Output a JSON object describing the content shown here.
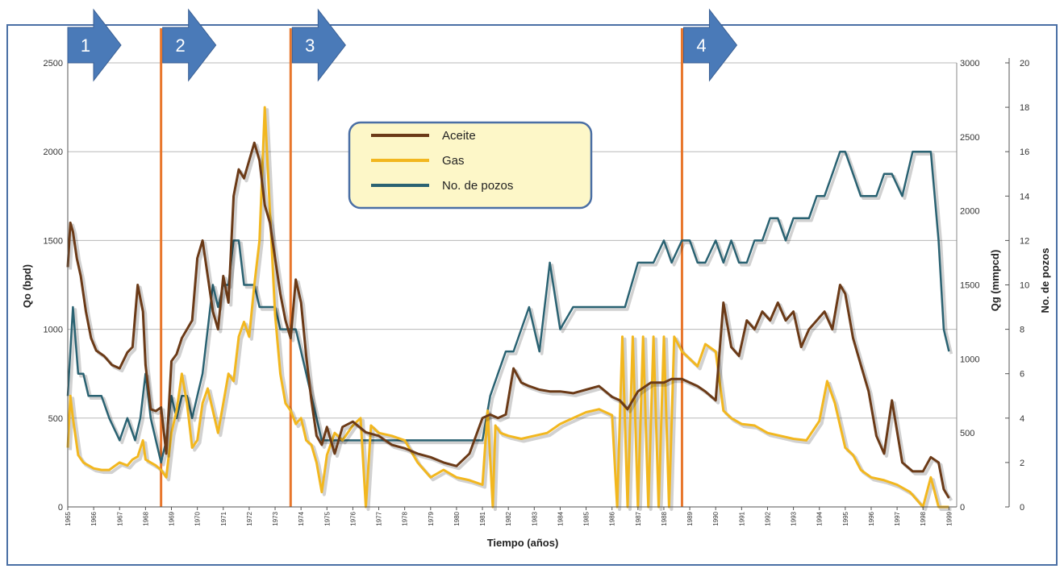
{
  "chart_data": {
    "type": "line",
    "title": "",
    "xlabel": "Tiempo (años)",
    "ylabel_left": "Qo (bpd)",
    "ylabel_right1": "Qg (mmpcd)",
    "ylabel_right2": "No. de pozos",
    "ylim_left": [
      0,
      2500
    ],
    "ylim_right1": [
      0,
      3000
    ],
    "ylim_right2": [
      0,
      20
    ],
    "yticks_left": [
      "0",
      "500",
      "1000",
      "1500",
      "2000",
      "2500"
    ],
    "yticks_right1": [
      "0",
      "500",
      "1000",
      "1500",
      "2000",
      "2500",
      "3000"
    ],
    "yticks_right2": [
      "0",
      "2",
      "4",
      "6",
      "8",
      "10",
      "12",
      "14",
      "16",
      "18",
      "20"
    ],
    "x_tick_labels": [
      "1965",
      "1966",
      "1967",
      "1968",
      "1969",
      "1970",
      "1971",
      "1972",
      "1973",
      "1974",
      "1975",
      "1976",
      "1977",
      "1978",
      "1979",
      "1980",
      "1981",
      "1982",
      "1983",
      "1984",
      "1985",
      "1986",
      "1987",
      "1988",
      "1989",
      "1990",
      "1991",
      "1992",
      "1993",
      "1994",
      "1995",
      "1996",
      "1997",
      "1998",
      "1999"
    ],
    "grid": "horizontal",
    "legend_placement": "top-center",
    "phases": [
      {
        "label": "1",
        "start": 1965.0
      },
      {
        "label": "2",
        "start": 1968.6
      },
      {
        "label": "3",
        "start": 1973.6
      },
      {
        "label": "4",
        "start": 1988.7
      }
    ],
    "series": [
      {
        "name": "Aceite",
        "axis": "left",
        "color": "#6b3a17",
        "x": [
          1965.0,
          1965.1,
          1965.2,
          1965.35,
          1965.5,
          1965.7,
          1965.9,
          1966.1,
          1966.4,
          1966.7,
          1967.0,
          1967.3,
          1967.5,
          1967.7,
          1967.9,
          1968.0,
          1968.2,
          1968.4,
          1968.6,
          1968.8,
          1969.0,
          1969.2,
          1969.4,
          1969.6,
          1969.8,
          1970.0,
          1970.2,
          1970.4,
          1970.6,
          1970.8,
          1971.0,
          1971.2,
          1971.4,
          1971.6,
          1971.8,
          1972.0,
          1972.2,
          1972.4,
          1972.6,
          1972.8,
          1973.0,
          1973.2,
          1973.4,
          1973.6,
          1973.8,
          1974.0,
          1974.2,
          1974.4,
          1974.6,
          1974.8,
          1975.0,
          1975.3,
          1975.6,
          1976.0,
          1976.5,
          1977.0,
          1977.5,
          1978.0,
          1978.5,
          1979.0,
          1979.5,
          1980.0,
          1980.5,
          1981.0,
          1981.3,
          1981.6,
          1981.9,
          1982.2,
          1982.5,
          1982.8,
          1983.2,
          1983.6,
          1984.0,
          1984.5,
          1985.0,
          1985.5,
          1986.0,
          1986.3,
          1986.6,
          1987.0,
          1987.5,
          1988.0,
          1988.3,
          1988.7,
          1989.0,
          1989.3,
          1989.6,
          1990.0,
          1990.3,
          1990.6,
          1990.9,
          1991.2,
          1991.5,
          1991.8,
          1992.1,
          1992.4,
          1992.7,
          1993.0,
          1993.3,
          1993.6,
          1993.9,
          1994.2,
          1994.5,
          1994.8,
          1995.0,
          1995.3,
          1995.6,
          1995.9,
          1996.2,
          1996.5,
          1996.8,
          1997.2,
          1997.6,
          1998.0,
          1998.3,
          1998.6,
          1998.8,
          1999.0
        ],
        "values": [
          1350,
          1600,
          1550,
          1400,
          1300,
          1100,
          950,
          880,
          850,
          800,
          780,
          870,
          900,
          1250,
          1100,
          800,
          550,
          540,
          560,
          300,
          820,
          860,
          950,
          1000,
          1050,
          1400,
          1500,
          1300,
          1100,
          1000,
          1300,
          1150,
          1750,
          1900,
          1850,
          1950,
          2050,
          1950,
          1700,
          1600,
          1400,
          1200,
          1050,
          950,
          1280,
          1150,
          850,
          600,
          400,
          350,
          450,
          300,
          450,
          480,
          420,
          400,
          350,
          330,
          300,
          280,
          250,
          230,
          300,
          500,
          520,
          500,
          520,
          780,
          700,
          680,
          660,
          650,
          650,
          640,
          660,
          680,
          620,
          600,
          550,
          650,
          700,
          700,
          720,
          720,
          700,
          680,
          650,
          600,
          1150,
          900,
          850,
          1050,
          1000,
          1100,
          1050,
          1150,
          1050,
          1100,
          900,
          1000,
          1050,
          1100,
          1000,
          1250,
          1200,
          950,
          800,
          650,
          400,
          300,
          600,
          250,
          200,
          200,
          280,
          250,
          100,
          50
        ],
        "width": 3
      },
      {
        "name": "Gas",
        "axis": "right1",
        "color": "#f2b71f",
        "x": [
          1965.0,
          1965.1,
          1965.2,
          1965.4,
          1965.6,
          1965.8,
          1966.0,
          1966.3,
          1966.6,
          1967.0,
          1967.3,
          1967.5,
          1967.7,
          1967.9,
          1968.0,
          1968.2,
          1968.4,
          1968.6,
          1968.8,
          1969.0,
          1969.2,
          1969.4,
          1969.6,
          1969.8,
          1970.0,
          1970.2,
          1970.4,
          1970.6,
          1970.8,
          1971.0,
          1971.2,
          1971.4,
          1971.6,
          1971.8,
          1972.0,
          1972.2,
          1972.4,
          1972.6,
          1972.8,
          1973.0,
          1973.2,
          1973.4,
          1973.6,
          1973.8,
          1974.0,
          1974.2,
          1974.4,
          1974.6,
          1974.8,
          1975.0,
          1975.3,
          1975.6,
          1976.0,
          1976.3,
          1976.5,
          1976.7,
          1977.0,
          1977.5,
          1978.0,
          1978.5,
          1979.0,
          1979.5,
          1980.0,
          1980.5,
          1981.0,
          1981.2,
          1981.4,
          1981.5,
          1981.7,
          1982.0,
          1982.5,
          1983.0,
          1983.5,
          1984.0,
          1984.5,
          1985.0,
          1985.5,
          1986.0,
          1986.2,
          1986.4,
          1986.6,
          1986.8,
          1987.0,
          1987.2,
          1987.4,
          1987.6,
          1987.8,
          1988.0,
          1988.2,
          1988.4,
          1988.7,
          1989.0,
          1989.3,
          1989.6,
          1990.0,
          1990.3,
          1990.6,
          1991.0,
          1991.5,
          1992.0,
          1992.5,
          1993.0,
          1993.5,
          1994.0,
          1994.3,
          1994.6,
          1995.0,
          1995.3,
          1995.6,
          1996.0,
          1996.5,
          1997.0,
          1997.5,
          1998.0,
          1998.3,
          1998.6,
          1999.0
        ],
        "values": [
          400,
          750,
          600,
          350,
          300,
          280,
          260,
          250,
          250,
          300,
          280,
          320,
          340,
          450,
          320,
          300,
          280,
          250,
          200,
          500,
          650,
          900,
          700,
          400,
          450,
          700,
          800,
          650,
          500,
          700,
          900,
          850,
          1150,
          1250,
          1150,
          1500,
          1800,
          2700,
          2000,
          1300,
          900,
          700,
          650,
          560,
          600,
          450,
          420,
          300,
          100,
          350,
          500,
          450,
          550,
          600,
          0,
          550,
          500,
          480,
          450,
          300,
          200,
          250,
          200,
          180,
          150,
          650,
          0,
          550,
          500,
          480,
          460,
          480,
          500,
          560,
          600,
          640,
          660,
          620,
          0,
          1150,
          0,
          1150,
          0,
          1150,
          0,
          1150,
          0,
          1150,
          0,
          1150,
          1050,
          1000,
          950,
          1100,
          1050,
          650,
          600,
          560,
          550,
          500,
          480,
          460,
          450,
          580,
          850,
          700,
          400,
          350,
          250,
          200,
          180,
          150,
          100,
          0,
          200,
          0,
          0
        ],
        "width": 3
      },
      {
        "name": "No. de pozos",
        "axis": "right2",
        "color": "#2a6272",
        "x": [
          1965.0,
          1965.2,
          1965.4,
          1965.6,
          1965.8,
          1966.0,
          1966.3,
          1966.6,
          1967.0,
          1967.3,
          1967.6,
          1967.8,
          1968.0,
          1968.2,
          1968.4,
          1968.6,
          1968.8,
          1969.0,
          1969.2,
          1969.4,
          1969.6,
          1969.8,
          1970.0,
          1970.2,
          1970.4,
          1970.6,
          1970.8,
          1971.0,
          1971.2,
          1971.4,
          1971.6,
          1971.8,
          1972.0,
          1972.2,
          1972.4,
          1972.6,
          1972.8,
          1973.0,
          1973.2,
          1973.4,
          1973.6,
          1973.8,
          1974.0,
          1974.2,
          1974.4,
          1974.6,
          1974.8,
          1975.0,
          1975.3,
          1975.6,
          1976.0,
          1976.3,
          1976.6,
          1977.0,
          1977.5,
          1978.0,
          1978.5,
          1979.0,
          1979.5,
          1980.0,
          1980.5,
          1981.0,
          1981.3,
          1981.6,
          1981.9,
          1982.2,
          1982.5,
          1982.8,
          1983.2,
          1983.6,
          1984.0,
          1984.5,
          1985.0,
          1985.5,
          1986.0,
          1986.5,
          1987.0,
          1987.3,
          1987.6,
          1988.0,
          1988.3,
          1988.7,
          1989.0,
          1989.3,
          1989.6,
          1990.0,
          1990.3,
          1990.6,
          1990.9,
          1991.2,
          1991.5,
          1991.8,
          1992.1,
          1992.4,
          1992.7,
          1993.0,
          1993.3,
          1993.6,
          1993.9,
          1994.2,
          1994.5,
          1994.8,
          1995.0,
          1995.3,
          1995.6,
          1995.9,
          1996.2,
          1996.5,
          1996.8,
          1997.2,
          1997.6,
          1998.0,
          1998.3,
          1998.6,
          1998.8,
          1999.0
        ],
        "values": [
          5,
          9,
          6,
          6,
          5,
          5,
          5,
          4,
          3,
          4,
          3,
          4,
          6,
          4,
          3,
          2,
          3,
          5,
          4,
          5,
          5,
          4,
          5,
          6,
          8,
          10,
          9,
          10,
          10,
          12,
          12,
          10,
          10,
          10,
          9,
          9,
          9,
          9,
          8,
          8,
          8,
          8,
          7,
          6,
          5,
          4,
          3,
          3,
          3,
          3,
          3,
          3,
          3,
          3,
          3,
          3,
          3,
          3,
          3,
          3,
          3,
          3,
          5,
          6,
          7,
          7,
          8,
          9,
          7,
          11,
          8,
          9,
          9,
          9,
          9,
          9,
          11,
          11,
          11,
          12,
          11,
          12,
          12,
          11,
          11,
          12,
          11,
          12,
          11,
          11,
          12,
          12,
          13,
          13,
          12,
          13,
          13,
          13,
          14,
          14,
          15,
          16,
          16,
          15,
          14,
          14,
          14,
          15,
          15,
          14,
          16,
          16,
          16,
          12,
          8,
          7
        ],
        "width": 2.5
      }
    ]
  }
}
